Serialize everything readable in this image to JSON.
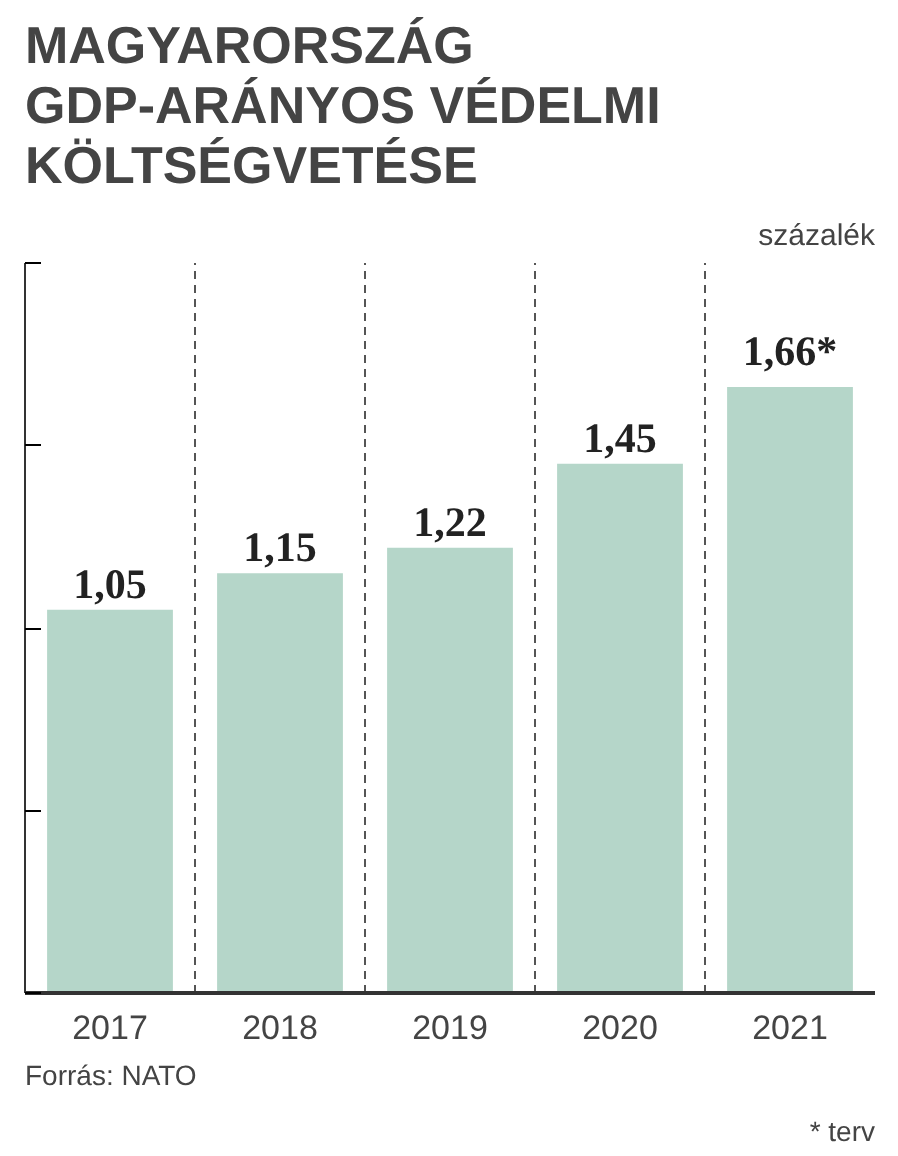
{
  "chart_data": {
    "type": "bar",
    "title": "MAGYARORSZÁG GDP-ARÁNYOS VÉDELMI KÖLTSÉGVETÉSE",
    "subtitle": "százalék",
    "categories": [
      "2017",
      "2018",
      "2019",
      "2020",
      "2021"
    ],
    "values": [
      1.05,
      1.15,
      1.22,
      1.45,
      1.66
    ],
    "value_labels": [
      "1,05",
      "1,15",
      "1,22",
      "1,45",
      "1,66*"
    ],
    "color": "#b5d6c9",
    "ylim": [
      0,
      2
    ],
    "yticks": [
      {
        "value": 0,
        "label": null
      },
      {
        "value": 0.5,
        "label": null
      },
      {
        "value": 1,
        "label": null
      },
      {
        "value": 1.5,
        "label": null
      },
      {
        "value": 2,
        "label": null
      }
    ],
    "grid": "x",
    "annotations": [
      "Forrás: NATO",
      "* terv"
    ]
  }
}
